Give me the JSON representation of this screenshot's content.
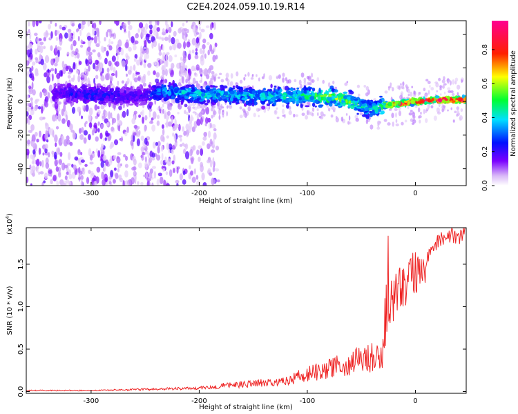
{
  "title": "C2E4.2024.059.10.19.R14",
  "colorbar": {
    "label": "Normalized spectral amplitude",
    "ticks": [
      "0.0",
      "0.2",
      "0.4",
      "0.6",
      "0.8"
    ],
    "tick_values": [
      0.0,
      0.2,
      0.4,
      0.6,
      0.8
    ],
    "range": [
      0,
      0.97
    ]
  },
  "chart_data": [
    {
      "type": "heatmap",
      "xlabel": "Height of straight line (km)",
      "ylabel": "Frequency (Hz)",
      "xlim": [
        -360,
        47
      ],
      "ylim": [
        -50,
        48
      ],
      "xticks": [
        -300,
        -200,
        -100,
        0
      ],
      "xtick_labels": [
        "-300",
        "-200",
        "-100",
        "0"
      ],
      "yticks": [
        -40,
        -20,
        0,
        20,
        40
      ],
      "ytick_labels": [
        "-40",
        "-20",
        "0",
        "20",
        "40"
      ],
      "ridge": {
        "x": [
          -330,
          -300,
          -250,
          -235,
          -200,
          -170,
          -140,
          -120,
          -100,
          -80,
          -60,
          -45,
          -35,
          -25,
          -10,
          0,
          20,
          47
        ],
        "y": [
          5,
          4,
          3,
          6,
          4,
          4,
          3,
          3,
          3,
          3,
          0,
          -4,
          -3,
          -2,
          -1,
          0,
          1,
          1
        ],
        "amplitude": [
          0.2,
          0.25,
          0.2,
          0.35,
          0.4,
          0.4,
          0.4,
          0.45,
          0.45,
          0.55,
          0.5,
          0.4,
          0.45,
          0.7,
          0.8,
          0.85,
          0.9,
          0.85
        ]
      }
    },
    {
      "type": "line",
      "xlabel": "Height of straight line (km)",
      "ylabel": "SNR (10 * v/v)",
      "y_multiplier_label": "(x10",
      "y_multiplier_exp": "4",
      "y_multiplier_close": ")",
      "xlim": [
        -360,
        47
      ],
      "ylim": [
        -0.02,
        1.93
      ],
      "xticks": [
        -300,
        -200,
        -100,
        0
      ],
      "xtick_labels": [
        "-300",
        "-200",
        "-100",
        "0"
      ],
      "yticks": [
        0.0,
        0.5,
        1.0,
        1.5
      ],
      "ytick_labels": [
        "0.0",
        "0.5",
        "1.0",
        "1.5"
      ],
      "series": [
        {
          "color": "#ee2222",
          "x": [
            -360,
            -300,
            -250,
            -200,
            -180,
            -150,
            -120,
            -100,
            -80,
            -60,
            -40,
            -30,
            -25,
            -20,
            -15,
            -10,
            0,
            10,
            20,
            30,
            40,
            47
          ],
          "y": [
            0.01,
            0.01,
            0.02,
            0.03,
            0.05,
            0.07,
            0.1,
            0.15,
            0.2,
            0.25,
            0.3,
            0.35,
            1.0,
            1.1,
            1.2,
            1.25,
            1.4,
            1.55,
            1.75,
            1.85,
            1.82,
            1.88
          ]
        }
      ]
    }
  ]
}
